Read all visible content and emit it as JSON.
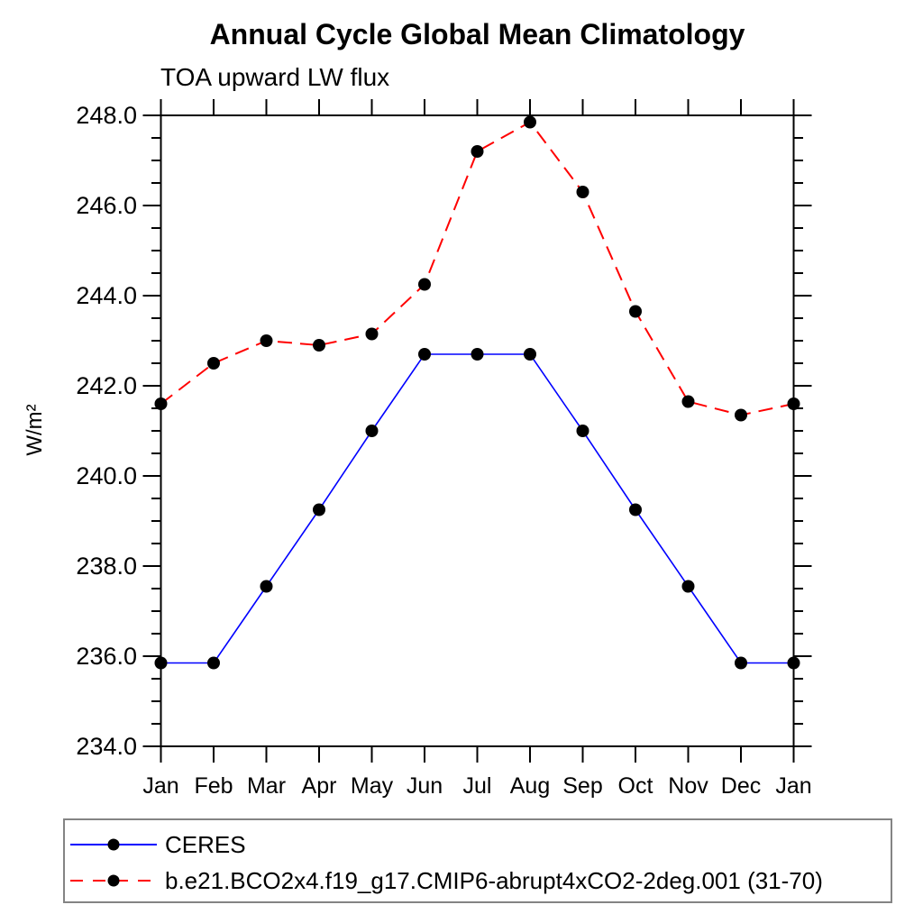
{
  "figure": {
    "title": "Annual Cycle Global Mean Climatology",
    "subtitle": "TOA upward LW flux",
    "ylabel": "W/m²"
  },
  "chart_data": {
    "type": "line",
    "title": "Annual Cycle Global Mean Climatology",
    "subtitle": "TOA upward LW flux",
    "xlabel": "",
    "ylabel": "W/m²",
    "x_categories": [
      "Jan",
      "Feb",
      "Mar",
      "Apr",
      "May",
      "Jun",
      "Jul",
      "Aug",
      "Sep",
      "Oct",
      "Nov",
      "Dec",
      "Jan"
    ],
    "ylim": [
      234.0,
      248.0
    ],
    "ytick_major_step": 2.0,
    "ytick_minor_step": 0.5,
    "ytick_labels": [
      "234.0",
      "236.0",
      "238.0",
      "240.0",
      "242.0",
      "244.0",
      "246.0",
      "248.0"
    ],
    "grid": false,
    "legend_position": "bottom",
    "axis_color": "#000000",
    "background_color": "#ffffff",
    "marker_radius": 7,
    "series": [
      {
        "name": "CERES",
        "line_color": "#0000ff",
        "line_style": "solid",
        "marker": "circle",
        "marker_color": "#000000",
        "values": [
          235.85,
          235.85,
          237.55,
          239.25,
          241.0,
          242.7,
          242.7,
          242.7,
          241.0,
          239.25,
          237.55,
          235.85,
          235.85
        ]
      },
      {
        "name": "b.e21.BCO2x4.f19_g17.CMIP6-abrupt4xCO2-2deg.001 (31-70)",
        "line_color": "#ff0000",
        "line_style": "dashed",
        "marker": "circle",
        "marker_color": "#000000",
        "values": [
          241.6,
          242.5,
          243.0,
          242.9,
          243.15,
          244.25,
          247.2,
          247.85,
          246.3,
          243.65,
          241.65,
          241.35,
          241.6
        ]
      }
    ]
  }
}
